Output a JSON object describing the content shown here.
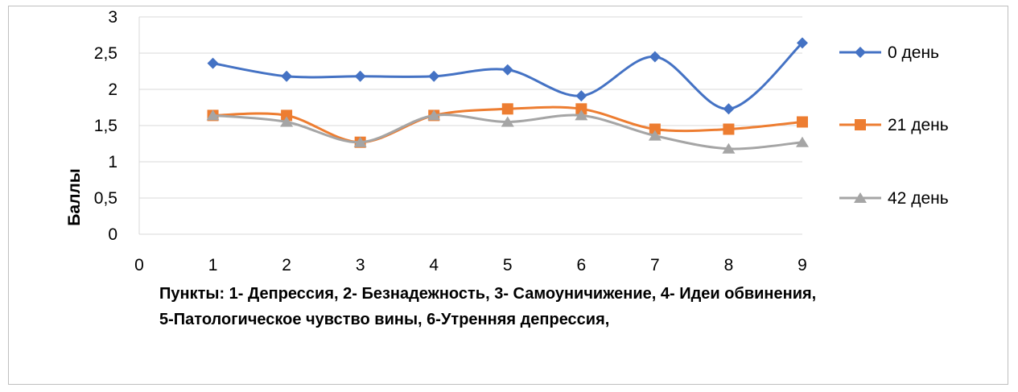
{
  "chart_data": {
    "type": "line",
    "xlabel_lines": [
      "Пункты: 1- Депрессия, 2- Безнадежность, 3- Самоуничижение, 4- Идеи обвинения,",
      "5-Патологическое чувство вины, 6-Утренняя депрессия,"
    ],
    "ylabel": "Баллы",
    "xlim": [
      0,
      9
    ],
    "ylim": [
      0,
      3
    ],
    "x_ticks": [
      "0",
      "1",
      "2",
      "3",
      "4",
      "5",
      "6",
      "7",
      "8",
      "9"
    ],
    "y_ticks": [
      "0",
      "0,5",
      "1",
      "1,5",
      "2",
      "2,5",
      "3"
    ],
    "grid": "horizontal",
    "legend_position": "right",
    "x": [
      1,
      2,
      3,
      4,
      5,
      6,
      7,
      8,
      9
    ],
    "series": [
      {
        "name": "0 день",
        "color": "#4472c4",
        "marker": "diamond",
        "values": [
          2.36,
          2.18,
          2.18,
          2.18,
          2.27,
          1.91,
          2.45,
          1.73,
          2.64
        ]
      },
      {
        "name": "21 день",
        "color": "#ed7d31",
        "marker": "square",
        "values": [
          1.64,
          1.64,
          1.27,
          1.64,
          1.73,
          1.73,
          1.45,
          1.45,
          1.55
        ]
      },
      {
        "name": "42 день",
        "color": "#a5a5a5",
        "marker": "triangle",
        "values": [
          1.64,
          1.55,
          1.27,
          1.64,
          1.55,
          1.64,
          1.36,
          1.18,
          1.27
        ]
      }
    ]
  }
}
